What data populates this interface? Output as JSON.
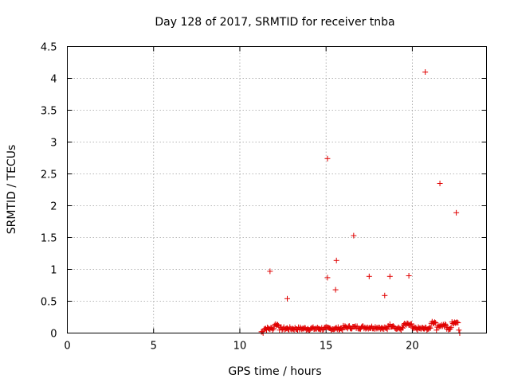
{
  "chart_data": {
    "type": "scatter",
    "title": "Day 128 of 2017, SRMTID for receiver tnba",
    "xlabel": "GPS time / hours",
    "ylabel": "SRMTID / TECUs",
    "xlim": [
      0,
      24.3
    ],
    "ylim": [
      0,
      4.5
    ],
    "xticks": [
      0,
      5,
      10,
      15,
      20
    ],
    "xtick_labels": [
      "0",
      "5",
      "10",
      "15",
      "20"
    ],
    "yticks": [
      0,
      0.5,
      1,
      1.5,
      2,
      2.5,
      3,
      3.5,
      4,
      4.5
    ],
    "ytick_labels": [
      "0",
      "0.5",
      "1",
      "1.5",
      "2",
      "2.5",
      "3",
      "3.5",
      "4",
      "4.5"
    ],
    "grid": true,
    "marker": "+",
    "series_color": "#e00000",
    "outliers": [
      {
        "x": 11.75,
        "y": 0.97
      },
      {
        "x": 12.75,
        "y": 0.54
      },
      {
        "x": 15.08,
        "y": 2.74
      },
      {
        "x": 15.08,
        "y": 0.87
      },
      {
        "x": 15.55,
        "y": 0.68
      },
      {
        "x": 15.6,
        "y": 1.14
      },
      {
        "x": 16.6,
        "y": 1.53
      },
      {
        "x": 17.5,
        "y": 0.89
      },
      {
        "x": 18.4,
        "y": 0.59
      },
      {
        "x": 18.7,
        "y": 0.89
      },
      {
        "x": 19.8,
        "y": 0.9
      },
      {
        "x": 20.75,
        "y": 4.1
      },
      {
        "x": 21.6,
        "y": 2.35
      },
      {
        "x": 22.55,
        "y": 1.89
      },
      {
        "x": 22.75,
        "y": 0.0
      }
    ],
    "dense_band": {
      "x_start": 11.25,
      "x_end": 22.7,
      "step": 0.05,
      "baseline": 0.07,
      "segments": [
        {
          "x0": 11.25,
          "x1": 11.4,
          "y": 0.02
        },
        {
          "x0": 12.0,
          "x1": 12.3,
          "y": 0.13
        },
        {
          "x0": 16.0,
          "x1": 18.2,
          "y": 0.09
        },
        {
          "x0": 18.6,
          "x1": 19.0,
          "y": 0.12
        },
        {
          "x0": 19.5,
          "x1": 20.0,
          "y": 0.13
        },
        {
          "x0": 21.1,
          "x1": 21.4,
          "y": 0.17
        },
        {
          "x0": 21.5,
          "x1": 22.0,
          "y": 0.12
        },
        {
          "x0": 22.3,
          "x1": 22.7,
          "y": 0.17
        }
      ]
    }
  }
}
